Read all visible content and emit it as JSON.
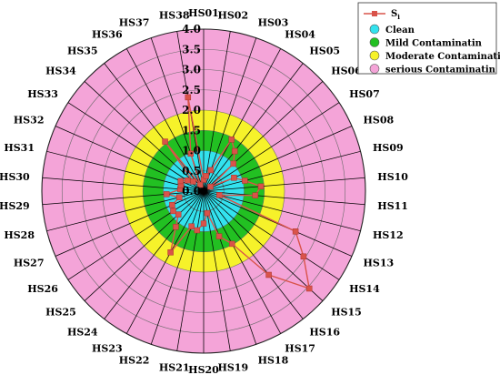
{
  "chart_data": {
    "type": "radar",
    "categories": [
      "HS01",
      "HS02",
      "HS03",
      "HS04",
      "HS05",
      "HS06",
      "HS07",
      "HS08",
      "HS09",
      "HS10",
      "HS11",
      "HS12",
      "HS13",
      "HS14",
      "HS15",
      "HS16",
      "HS17",
      "HS18",
      "HS19",
      "HS20",
      "HS21",
      "HS22",
      "HS23",
      "HS24",
      "HS25",
      "HS26",
      "HS27",
      "HS28",
      "HS29",
      "HS30",
      "HS31",
      "HS32",
      "HS33",
      "HS34",
      "HS35",
      "HS36",
      "HS37",
      "HS38"
    ],
    "radial_ticks": [
      "0.0",
      "0.5",
      "1.0",
      "1.5",
      "2.0",
      "2.5",
      "3.0",
      "3.5",
      "4.0"
    ],
    "rmax": 4.0,
    "series": [
      {
        "name": "Si",
        "color": "#d9534a",
        "values": [
          0.28,
          0.38,
          0.55,
          1.45,
          1.25,
          1.0,
          0.2,
          0.82,
          1.05,
          1.42,
          1.28,
          0.4,
          2.48,
          2.95,
          3.55,
          2.62,
          1.48,
          1.18,
          0.55,
          0.8,
          0.98,
          0.92,
          1.72,
          1.12,
          0.85,
          0.9,
          0.85,
          0.62,
          0.92,
          0.58,
          0.58,
          0.62,
          0.48,
          0.35,
          1.55,
          0.18,
          0.98,
          2.35
        ]
      }
    ],
    "zones": [
      {
        "label": "Clean",
        "from": 0.0,
        "to": 1.0,
        "color": "#33e2ee"
      },
      {
        "label": "Mild Contaminatin",
        "from": 1.0,
        "to": 1.5,
        "color": "#22c022"
      },
      {
        "label": "Moderate Contaminatin",
        "from": 1.5,
        "to": 2.0,
        "color": "#f6f22a"
      },
      {
        "label": "serious Contaminatin",
        "from": 2.0,
        "to": 4.0,
        "color": "#f4a4d8"
      }
    ],
    "legend": {
      "placement": "top-right",
      "series_label": "S",
      "series_subscript": "i",
      "entries": [
        "Clean",
        "Mild Contaminatin",
        "Moderate Contaminatin",
        "serious Contaminatin"
      ]
    }
  }
}
